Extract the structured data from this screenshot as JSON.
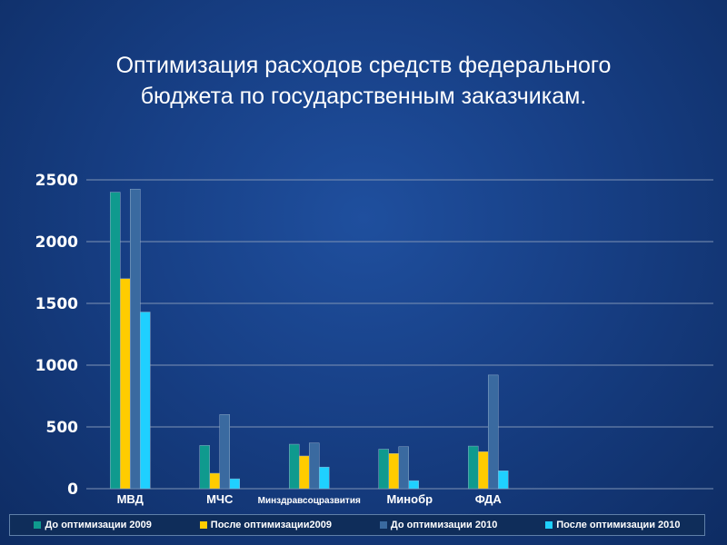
{
  "title_line1": "Оптимизация расходов средств федерального",
  "title_line2": "бюджета по государственным заказчикам.",
  "chart_data": {
    "type": "bar",
    "title": "Оптимизация расходов средств федерального бюджета по государственным заказчикам.",
    "categories": [
      "МВД",
      "МЧС",
      "Минздравсоцразвития",
      "Минобр",
      "ФДА"
    ],
    "series": [
      {
        "name": "До оптимизации 2009",
        "color": "#0f9a8e",
        "values": [
          2400,
          350,
          360,
          320,
          345
        ]
      },
      {
        "name": "После оптимизации2009",
        "color": "#ffcc00",
        "values": [
          1700,
          125,
          265,
          285,
          300
        ]
      },
      {
        "name": "До оптимизации 2010",
        "color": "#3a6aa0",
        "values": [
          2425,
          600,
          370,
          340,
          920
        ]
      },
      {
        "name": "После оптимизации 2010",
        "color": "#1fd0ff",
        "values": [
          1430,
          80,
          175,
          65,
          145
        ]
      }
    ],
    "yticks": [
      "0",
      "500",
      "1000",
      "1500",
      "2000",
      "2500"
    ],
    "ylim": [
      0,
      2500
    ],
    "xlabel": "",
    "ylabel": "",
    "grid": true,
    "legend": "bottom"
  }
}
